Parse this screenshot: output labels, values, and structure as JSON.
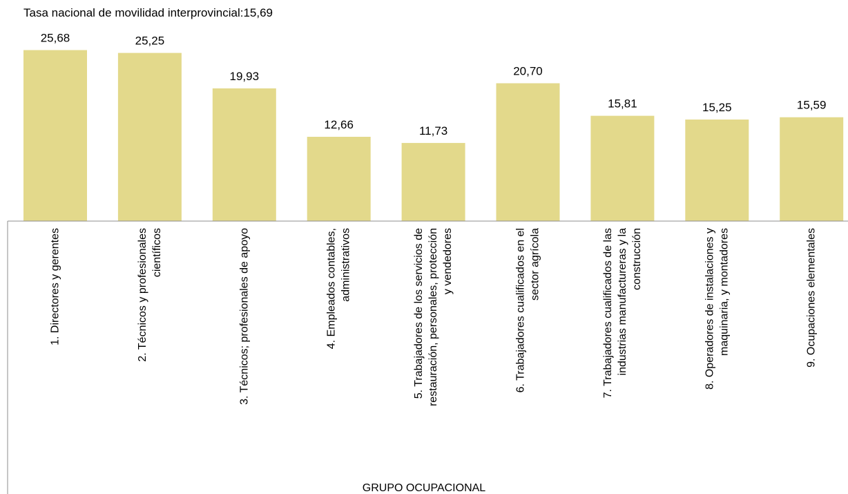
{
  "chart_data": {
    "type": "bar",
    "annotation": "Tasa nacional de movilidad interprovincial:15,69",
    "xlabel": "GRUPO OCUPACIONAL",
    "ylabel": "",
    "ylim": [
      0,
      27
    ],
    "grid": false,
    "legend": "none",
    "bar_color": "#e3d98b",
    "categories": [
      [
        "1. Directores y gerentes"
      ],
      [
        "2. Técnicos y profesionales",
        "científicos"
      ],
      [
        "3. Técnicos; profesionales de apoyo"
      ],
      [
        "4. Empleados contables,",
        "administrativos"
      ],
      [
        "5. Trabajadores de los servicios de",
        "restauración, personales, protección",
        "y vendedores"
      ],
      [
        "6. Trabajadores cualificados en el",
        "sector agrícola"
      ],
      [
        "7. Trabajadores cualificados de las",
        "industrias manufactureras y la",
        "construcción"
      ],
      [
        "8. Operadores de instalaciones y",
        "maquinaria, y montadores"
      ],
      [
        "9. Ocupaciones elementales"
      ]
    ],
    "values": [
      25.68,
      25.25,
      19.93,
      12.66,
      11.73,
      20.7,
      15.81,
      15.25,
      15.59
    ],
    "value_labels": [
      "25,68",
      "25,25",
      "19,93",
      "12,66",
      "11,73",
      "20,70",
      "15,81",
      "15,25",
      "15,59"
    ]
  }
}
